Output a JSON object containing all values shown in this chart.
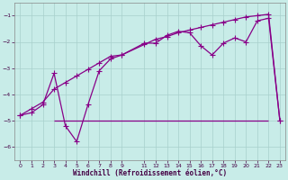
{
  "xlabel": "Windchill (Refroidissement éolien,°C)",
  "bg_color": "#c8ece8",
  "line_color": "#880088",
  "grid_color": "#a8d0cc",
  "xlim": [
    -0.5,
    23.5
  ],
  "ylim": [
    -6.5,
    -0.5
  ],
  "yticks": [
    -6,
    -5,
    -4,
    -3,
    -2,
    -1
  ],
  "xticks": [
    0,
    1,
    2,
    3,
    4,
    5,
    6,
    7,
    8,
    9,
    11,
    12,
    13,
    14,
    15,
    16,
    17,
    18,
    19,
    20,
    21,
    22,
    23
  ],
  "line1_x": [
    0,
    1,
    2,
    3,
    4,
    5,
    6,
    7,
    8,
    9,
    11,
    12,
    13,
    14,
    15,
    16,
    17,
    18,
    19,
    20,
    21,
    22,
    23
  ],
  "line1_y": [
    -4.8,
    -4.7,
    -4.4,
    -3.2,
    -5.2,
    -5.8,
    -4.4,
    -3.1,
    -2.65,
    -2.5,
    -2.05,
    -2.05,
    -1.75,
    -1.6,
    -1.65,
    -2.15,
    -2.5,
    -2.05,
    -1.85,
    -2.0,
    -1.2,
    -1.1,
    -5.0
  ],
  "line2_x": [
    0,
    1,
    2,
    3,
    4,
    5,
    6,
    7,
    8,
    9,
    11,
    12,
    13,
    14,
    15,
    16,
    17,
    18,
    19,
    20,
    21,
    22,
    23
  ],
  "line2_y": [
    -4.8,
    -4.55,
    -4.3,
    -3.8,
    -3.55,
    -3.3,
    -3.05,
    -2.8,
    -2.55,
    -2.5,
    -2.1,
    -1.9,
    -1.8,
    -1.65,
    -1.55,
    -1.45,
    -1.35,
    -1.25,
    -1.15,
    -1.05,
    -1.0,
    -0.95,
    -5.0
  ],
  "hline_y": -5.0,
  "hline_x_start": 3.0,
  "hline_x_end": 22.0,
  "marker_size": 2.5,
  "line_width": 0.9
}
